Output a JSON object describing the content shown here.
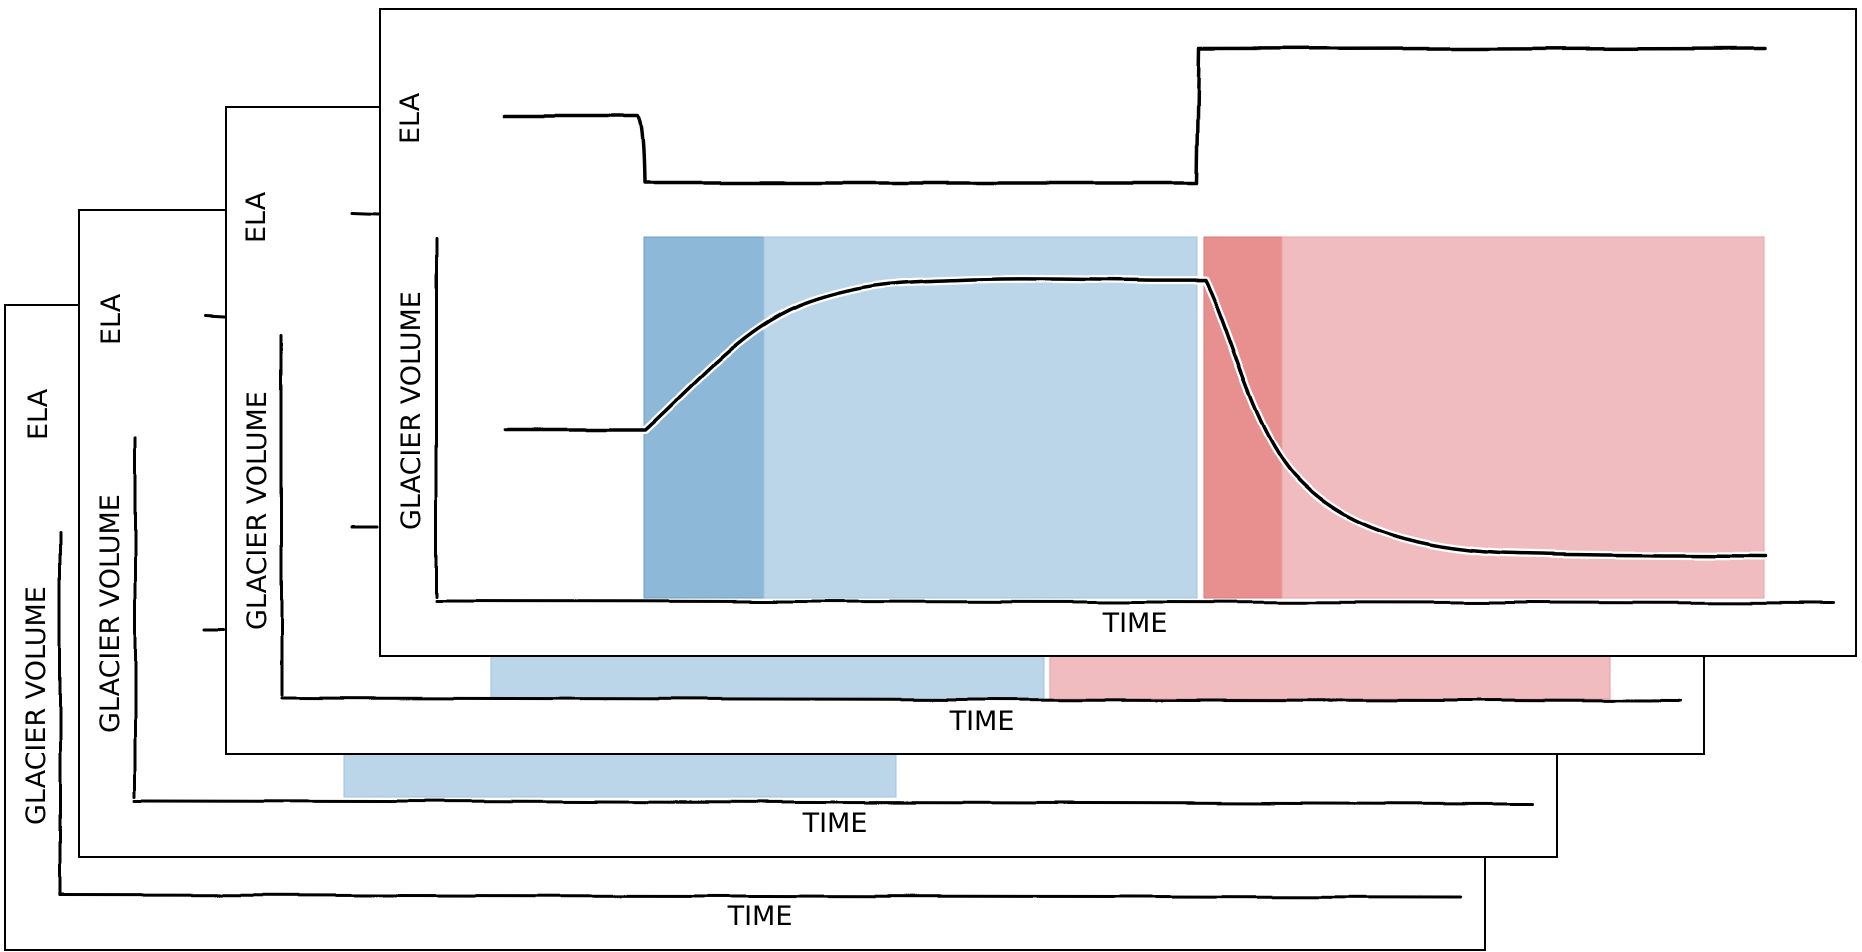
{
  "panels": [
    {
      "id": "panel-1",
      "ela_label": "ELA",
      "volume_label": "GLACIER VOLUME",
      "time_label": "TIME"
    },
    {
      "id": "panel-2",
      "ela_label": "ELA",
      "volume_label": "GLACIER VOLUME",
      "time_label": "TIME"
    },
    {
      "id": "panel-3",
      "ela_label": "ELA",
      "volume_label": "GLACIER VOLUME",
      "time_label": "TIME"
    },
    {
      "id": "panel-4",
      "ela_label": "ELA",
      "volume_label": "GLACIER VOLUME",
      "time_label": "TIME"
    }
  ],
  "colors": {
    "advance_fast": "#8eb8d8",
    "advance_slow": "#bbd6e9",
    "retreat_fast": "#e89090",
    "retreat_slow": "#f1bcbf",
    "line": "#000000",
    "frame": "#000000"
  }
}
